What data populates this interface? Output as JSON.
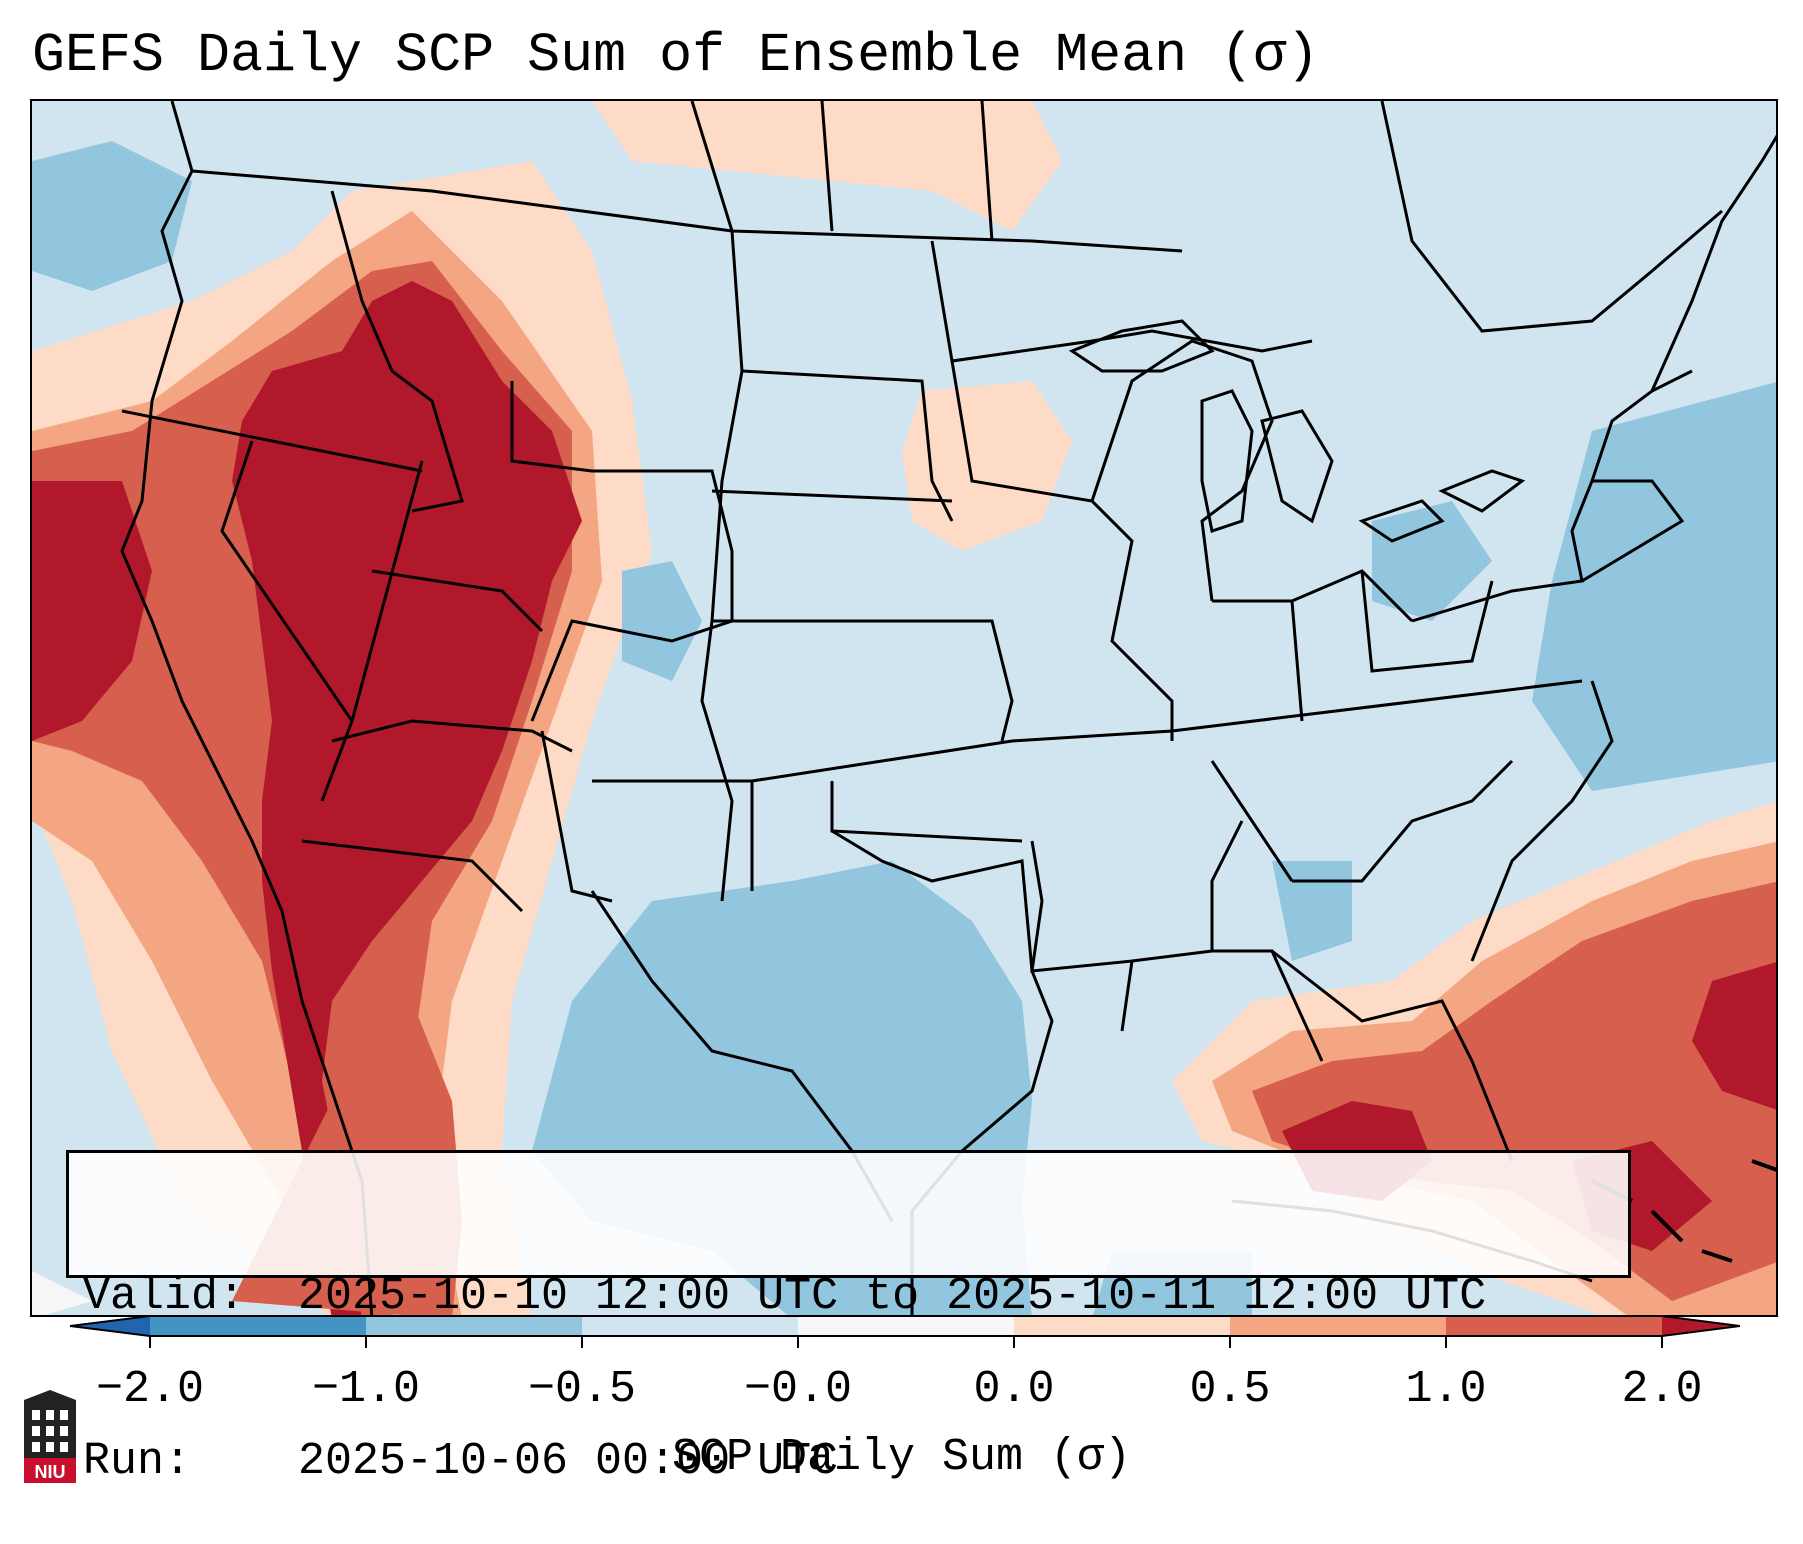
{
  "title": "GEFS Daily SCP Sum of Ensemble Mean (σ)",
  "info": {
    "valid_label": "Valid:",
    "valid_value": "2025-10-10 12:00 UTC to 2025-10-11 12:00 UTC",
    "run_label": "Run:",
    "run_value": "2025-10-06 00:00 UTC"
  },
  "colorbar": {
    "label": "SCP Daily Sum (σ)",
    "ticks": [
      "−2.0",
      "−1.0",
      "−0.5",
      "−0.0",
      "0.0",
      "0.5",
      "1.0",
      "2.0"
    ],
    "colors": [
      "#4393c3",
      "#92c5de",
      "#d1e5f0",
      "#f7f7f7",
      "#fddbc7",
      "#f4a582",
      "#d6604d",
      "#b2182b"
    ],
    "extend": "both"
  },
  "legend_colors": {
    "strong_negative": "#4393c3",
    "negative": "#92c5de",
    "weak_negative": "#d1e5f0",
    "weak_positive": "#fddbc7",
    "positive": "#f4a582",
    "strong_positive": "#d6604d",
    "very_strong_positive": "#b2182b"
  },
  "logo": {
    "text": "NIU",
    "color": "#c8102e"
  }
}
